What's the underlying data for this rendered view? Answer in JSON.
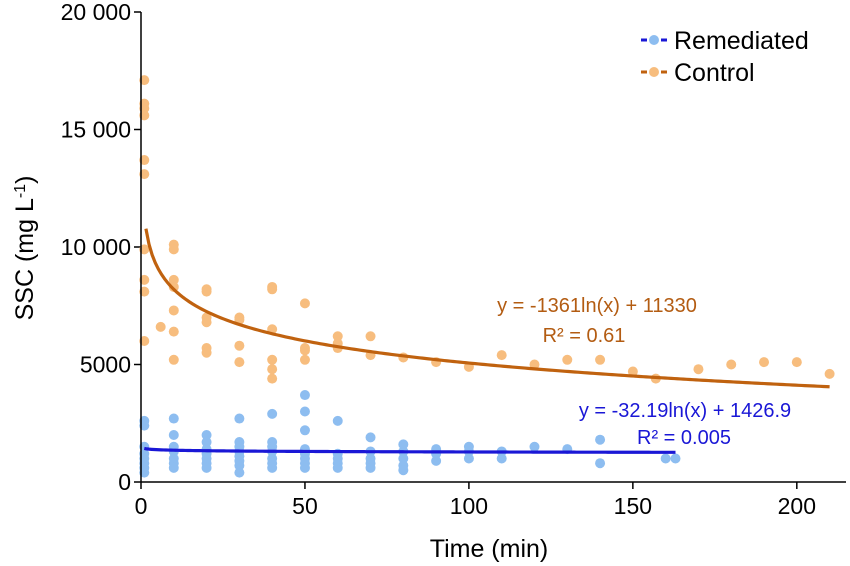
{
  "chart_data": {
    "type": "scatter",
    "xlabel": "Time (min)",
    "ylabel": "SSC (mg L",
    "ylabel_sup": "-1",
    "ylabel_close": ")",
    "xlim": [
      0,
      215
    ],
    "ylim": [
      0,
      20000
    ],
    "x_ticks": [
      0,
      50,
      100,
      150,
      200
    ],
    "x_tick_labels": [
      "0",
      "50",
      "100",
      "150",
      "200"
    ],
    "y_ticks": [
      0,
      5000,
      10000,
      15000,
      20000
    ],
    "y_tick_labels": [
      "0",
      "5000",
      "10 000",
      "15 000",
      "20 000"
    ],
    "legend_position": "top-right",
    "grid": false,
    "series": [
      {
        "name": "Remediated",
        "marker_color": "#8dbdf0",
        "line_color": "#1a17d6",
        "points": [
          [
            1,
            2600
          ],
          [
            1,
            2400
          ],
          [
            1,
            1500
          ],
          [
            1,
            1200
          ],
          [
            1,
            1000
          ],
          [
            1,
            800
          ],
          [
            1,
            600
          ],
          [
            1,
            400
          ],
          [
            10,
            2700
          ],
          [
            10,
            2000
          ],
          [
            10,
            1500
          ],
          [
            10,
            1300
          ],
          [
            10,
            1000
          ],
          [
            10,
            800
          ],
          [
            10,
            600
          ],
          [
            20,
            2000
          ],
          [
            20,
            1700
          ],
          [
            20,
            1400
          ],
          [
            20,
            1200
          ],
          [
            20,
            1000
          ],
          [
            20,
            800
          ],
          [
            20,
            600
          ],
          [
            30,
            2700
          ],
          [
            30,
            1700
          ],
          [
            30,
            1500
          ],
          [
            30,
            1300
          ],
          [
            30,
            1100
          ],
          [
            30,
            900
          ],
          [
            30,
            700
          ],
          [
            30,
            400
          ],
          [
            40,
            2900
          ],
          [
            40,
            1700
          ],
          [
            40,
            1500
          ],
          [
            40,
            1300
          ],
          [
            40,
            1000
          ],
          [
            40,
            800
          ],
          [
            40,
            600
          ],
          [
            50,
            3700
          ],
          [
            50,
            3000
          ],
          [
            50,
            2200
          ],
          [
            50,
            1400
          ],
          [
            50,
            1200
          ],
          [
            50,
            1000
          ],
          [
            50,
            800
          ],
          [
            50,
            600
          ],
          [
            60,
            2600
          ],
          [
            60,
            1200
          ],
          [
            60,
            1000
          ],
          [
            60,
            800
          ],
          [
            60,
            600
          ],
          [
            70,
            1900
          ],
          [
            70,
            1300
          ],
          [
            70,
            1000
          ],
          [
            70,
            800
          ],
          [
            70,
            600
          ],
          [
            80,
            1600
          ],
          [
            80,
            1300
          ],
          [
            80,
            1000
          ],
          [
            80,
            700
          ],
          [
            80,
            500
          ],
          [
            90,
            1400
          ],
          [
            90,
            1200
          ],
          [
            90,
            900
          ],
          [
            100,
            1500
          ],
          [
            100,
            1300
          ],
          [
            100,
            1000
          ],
          [
            110,
            1300
          ],
          [
            110,
            1000
          ],
          [
            120,
            1500
          ],
          [
            130,
            1400
          ],
          [
            140,
            1800
          ],
          [
            140,
            800
          ],
          [
            160,
            1000
          ],
          [
            163,
            1000
          ]
        ],
        "fit": {
          "equation": "y = -32.19ln(x) + 1426.9",
          "r2": "R² = 0.005",
          "a": -32.19,
          "b": 1426.9,
          "x_range": [
            1,
            163
          ]
        }
      },
      {
        "name": "Control",
        "marker_color": "#f7bd7e",
        "line_color": "#c0620f",
        "points": [
          [
            1,
            17100
          ],
          [
            1,
            16100
          ],
          [
            1,
            15900
          ],
          [
            1,
            15600
          ],
          [
            1,
            13700
          ],
          [
            1,
            13100
          ],
          [
            1,
            9900
          ],
          [
            1,
            8600
          ],
          [
            1,
            8100
          ],
          [
            1,
            6000
          ],
          [
            6,
            6600
          ],
          [
            10,
            10100
          ],
          [
            10,
            9900
          ],
          [
            10,
            8600
          ],
          [
            10,
            8300
          ],
          [
            10,
            7300
          ],
          [
            10,
            6400
          ],
          [
            10,
            5200
          ],
          [
            20,
            8200
          ],
          [
            20,
            8100
          ],
          [
            20,
            7000
          ],
          [
            20,
            6800
          ],
          [
            20,
            5700
          ],
          [
            20,
            5500
          ],
          [
            30,
            7000
          ],
          [
            30,
            6900
          ],
          [
            30,
            5800
          ],
          [
            30,
            5100
          ],
          [
            40,
            8300
          ],
          [
            40,
            8200
          ],
          [
            40,
            6500
          ],
          [
            40,
            5200
          ],
          [
            40,
            4800
          ],
          [
            40,
            4400
          ],
          [
            50,
            7600
          ],
          [
            50,
            5700
          ],
          [
            50,
            5600
          ],
          [
            50,
            5200
          ],
          [
            60,
            6200
          ],
          [
            60,
            5900
          ],
          [
            60,
            5700
          ],
          [
            70,
            6200
          ],
          [
            70,
            5400
          ],
          [
            80,
            5300
          ],
          [
            90,
            5100
          ],
          [
            100,
            4900
          ],
          [
            110,
            5400
          ],
          [
            120,
            5000
          ],
          [
            130,
            5200
          ],
          [
            140,
            5200
          ],
          [
            150,
            4700
          ],
          [
            157,
            4400
          ],
          [
            170,
            4800
          ],
          [
            180,
            5000
          ],
          [
            190,
            5100
          ],
          [
            200,
            5100
          ],
          [
            210,
            4600
          ]
        ],
        "fit": {
          "equation": "y = -1361ln(x) + 11330",
          "r2": "R² = 0.61",
          "a": -1361,
          "b": 11330,
          "x_range": [
            1.5,
            210
          ]
        }
      }
    ]
  }
}
